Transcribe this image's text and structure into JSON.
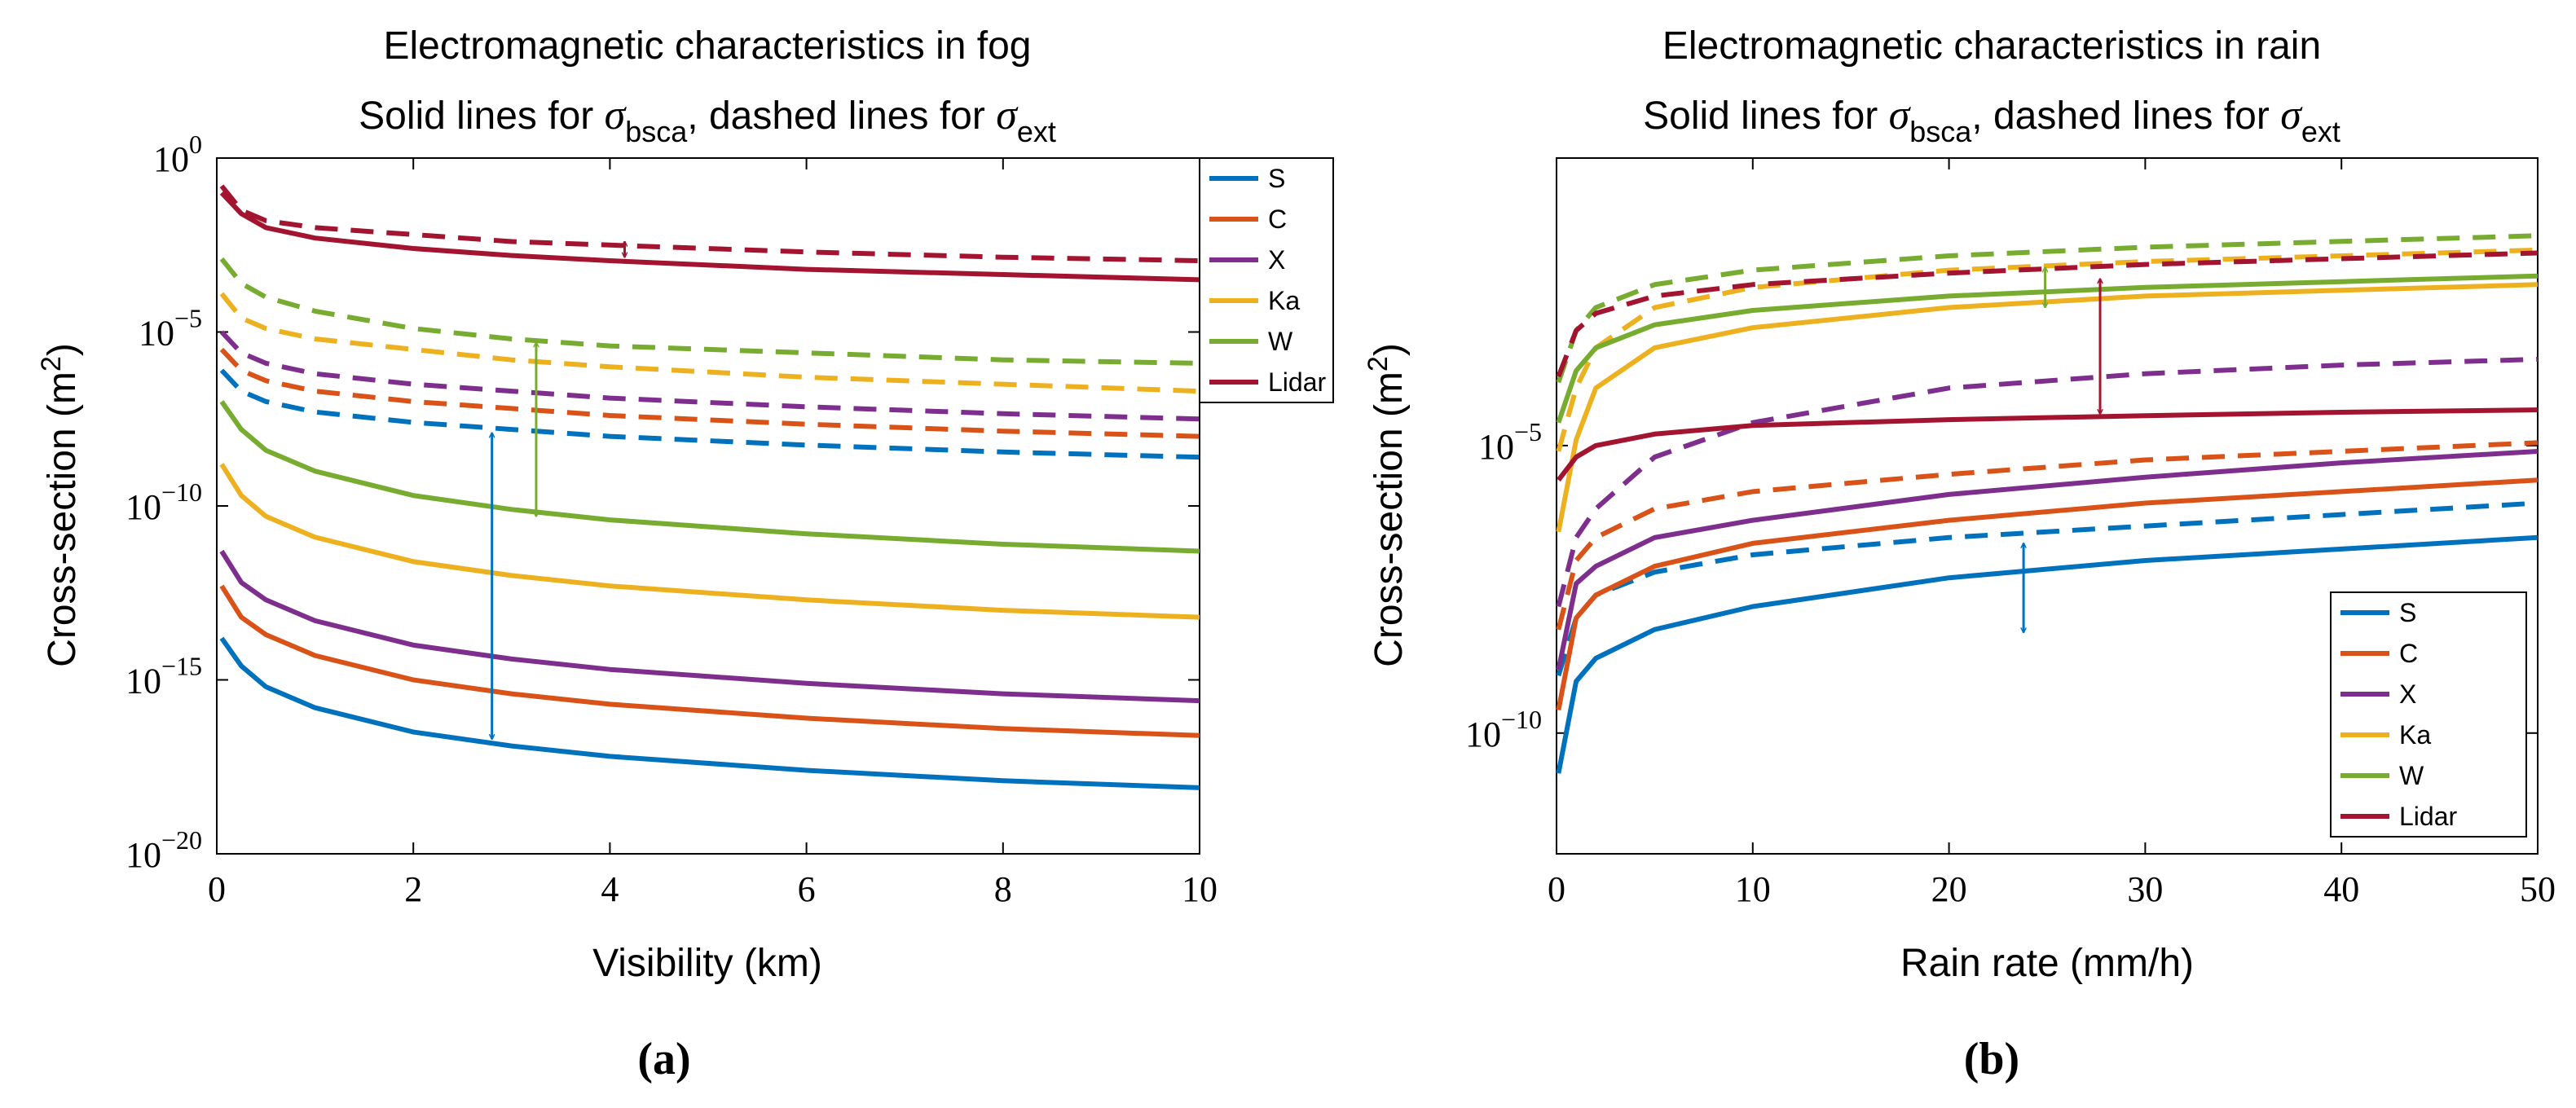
{
  "colors": {
    "S": "#0072BD",
    "C": "#D95319",
    "X": "#7E2F8E",
    "Ka": "#EDB120",
    "W": "#77AC30",
    "Lidar": "#A2142F"
  },
  "chart_data": [
    {
      "type": "line",
      "id": "fog",
      "title_line1": "Electromagnetic characteristics in fog",
      "title_line2": {
        "pre": "Solid lines for ",
        "sym1": "σ",
        "sub1": "bsca",
        "mid": ", dashed lines for ",
        "sym2": "σ",
        "sub2": "ext"
      },
      "xlabel": "Visibility (km)",
      "ylabel": "Cross-section (m",
      "ylabel_sup": "2",
      "ylabel_end": ")",
      "xlim": [
        0,
        10
      ],
      "ylim_log10": [
        -20,
        0
      ],
      "xticks": [
        0,
        2,
        4,
        6,
        8,
        10
      ],
      "yticks": [
        {
          "v": 0,
          "base": "10",
          "exp": "0"
        },
        {
          "v": -5,
          "base": "10",
          "exp": "−5"
        },
        {
          "v": -10,
          "base": "10",
          "exp": "−10"
        },
        {
          "v": -15,
          "base": "10",
          "exp": "−15"
        },
        {
          "v": -20,
          "base": "10",
          "exp": "−20"
        }
      ],
      "x": [
        0.05,
        0.25,
        0.5,
        1,
        2,
        3,
        4,
        6,
        8,
        10
      ],
      "legend": [
        "S",
        "C",
        "X",
        "Ka",
        "W",
        "Lidar"
      ],
      "legend_position": "outside-top-right",
      "series_solid_log10": [
        {
          "name": "S",
          "values": [
            -13.8,
            -14.6,
            -15.2,
            -15.8,
            -16.5,
            -16.9,
            -17.2,
            -17.6,
            -17.9,
            -18.1
          ]
        },
        {
          "name": "C",
          "values": [
            -12.3,
            -13.2,
            -13.7,
            -14.3,
            -15.0,
            -15.4,
            -15.7,
            -16.1,
            -16.4,
            -16.6
          ]
        },
        {
          "name": "X",
          "values": [
            -11.3,
            -12.2,
            -12.7,
            -13.3,
            -14.0,
            -14.4,
            -14.7,
            -15.1,
            -15.4,
            -15.6
          ]
        },
        {
          "name": "Ka",
          "values": [
            -8.8,
            -9.7,
            -10.3,
            -10.9,
            -11.6,
            -12.0,
            -12.3,
            -12.7,
            -13.0,
            -13.2
          ]
        },
        {
          "name": "W",
          "values": [
            -7.0,
            -7.8,
            -8.4,
            -9.0,
            -9.7,
            -10.1,
            -10.4,
            -10.8,
            -11.1,
            -11.3
          ]
        },
        {
          "name": "Lidar",
          "values": [
            -1.0,
            -1.6,
            -2.0,
            -2.3,
            -2.6,
            -2.8,
            -2.95,
            -3.2,
            -3.35,
            -3.5
          ]
        }
      ],
      "series_dashed_log10": [
        {
          "name": "S",
          "values": [
            -6.1,
            -6.7,
            -7.0,
            -7.3,
            -7.6,
            -7.8,
            -8.0,
            -8.25,
            -8.45,
            -8.6
          ]
        },
        {
          "name": "C",
          "values": [
            -5.5,
            -6.1,
            -6.4,
            -6.7,
            -7.0,
            -7.2,
            -7.4,
            -7.65,
            -7.85,
            -8.0
          ]
        },
        {
          "name": "X",
          "values": [
            -5.0,
            -5.6,
            -5.9,
            -6.2,
            -6.5,
            -6.7,
            -6.9,
            -7.15,
            -7.35,
            -7.5
          ]
        },
        {
          "name": "Ka",
          "values": [
            -3.9,
            -4.6,
            -4.9,
            -5.2,
            -5.5,
            -5.8,
            -6.0,
            -6.3,
            -6.5,
            -6.7
          ]
        },
        {
          "name": "W",
          "values": [
            -2.9,
            -3.6,
            -4.0,
            -4.4,
            -4.9,
            -5.2,
            -5.4,
            -5.6,
            -5.8,
            -5.9
          ]
        },
        {
          "name": "Lidar",
          "values": [
            -0.8,
            -1.5,
            -1.8,
            -2.0,
            -2.2,
            -2.4,
            -2.5,
            -2.7,
            -2.85,
            -2.95
          ]
        }
      ],
      "annotations": [
        {
          "color": "S",
          "x": 2.8,
          "y1": -7.9,
          "y2": -16.7
        },
        {
          "color": "W",
          "x": 3.25,
          "y1": -5.3,
          "y2": -10.3
        },
        {
          "color": "Lidar",
          "x": 4.15,
          "y1": -2.4,
          "y2": -2.85
        }
      ],
      "caption": "(a)"
    },
    {
      "type": "line",
      "id": "rain",
      "title_line1": "Electromagnetic characteristics in rain",
      "title_line2": {
        "pre": "Solid lines for ",
        "sym1": "σ",
        "sub1": "bsca",
        "mid": ", dashed lines for ",
        "sym2": "σ",
        "sub2": "ext"
      },
      "xlabel": "Rain rate (mm/h)",
      "ylabel": "Cross-section (m",
      "ylabel_sup": "2",
      "ylabel_end": ")",
      "xlim": [
        0,
        50
      ],
      "ylim_log10": [
        -12.1,
        0
      ],
      "xticks": [
        0,
        10,
        20,
        30,
        40,
        50
      ],
      "yticks": [
        {
          "v": -5,
          "base": "10",
          "exp": "−5"
        },
        {
          "v": -10,
          "base": "10",
          "exp": "−10"
        }
      ],
      "x": [
        0.1,
        1,
        2,
        5,
        10,
        20,
        30,
        40,
        50
      ],
      "legend": [
        "S",
        "C",
        "X",
        "Ka",
        "W",
        "Lidar"
      ],
      "legend_position": "bottom-right",
      "series_solid_log10": [
        {
          "name": "S",
          "values": [
            -10.7,
            -9.1,
            -8.7,
            -8.2,
            -7.8,
            -7.3,
            -7.0,
            -6.8,
            -6.6
          ]
        },
        {
          "name": "C",
          "values": [
            -9.6,
            -8.0,
            -7.6,
            -7.1,
            -6.7,
            -6.3,
            -6.0,
            -5.8,
            -5.6
          ]
        },
        {
          "name": "X",
          "values": [
            -8.9,
            -7.4,
            -7.1,
            -6.6,
            -6.3,
            -5.85,
            -5.55,
            -5.3,
            -5.1
          ]
        },
        {
          "name": "Ka",
          "values": [
            -6.5,
            -4.9,
            -4.0,
            -3.3,
            -2.95,
            -2.6,
            -2.4,
            -2.3,
            -2.2
          ]
        },
        {
          "name": "W",
          "values": [
            -4.6,
            -3.7,
            -3.3,
            -2.9,
            -2.65,
            -2.4,
            -2.25,
            -2.15,
            -2.05
          ]
        },
        {
          "name": "Lidar",
          "values": [
            -5.6,
            -5.2,
            -5.0,
            -4.8,
            -4.65,
            -4.55,
            -4.48,
            -4.42,
            -4.38
          ]
        }
      ],
      "series_dashed_log10": [
        {
          "name": "S",
          "values": [
            -9.0,
            -8.0,
            -7.6,
            -7.2,
            -6.9,
            -6.6,
            -6.4,
            -6.2,
            -6.0
          ]
        },
        {
          "name": "C",
          "values": [
            -8.2,
            -7.0,
            -6.6,
            -6.1,
            -5.8,
            -5.5,
            -5.25,
            -5.1,
            -4.95
          ]
        },
        {
          "name": "X",
          "values": [
            -7.8,
            -6.6,
            -6.1,
            -5.2,
            -4.6,
            -4.0,
            -3.75,
            -3.6,
            -3.5
          ]
        },
        {
          "name": "Ka",
          "values": [
            -5.1,
            -4.0,
            -3.3,
            -2.6,
            -2.25,
            -1.95,
            -1.8,
            -1.7,
            -1.6
          ]
        },
        {
          "name": "W",
          "values": [
            -3.9,
            -3.0,
            -2.6,
            -2.2,
            -1.95,
            -1.7,
            -1.55,
            -1.45,
            -1.35
          ]
        },
        {
          "name": "Lidar",
          "values": [
            -3.8,
            -3.0,
            -2.7,
            -2.4,
            -2.2,
            -2.0,
            -1.85,
            -1.75,
            -1.65
          ]
        }
      ],
      "annotations": [
        {
          "color": "S",
          "x": 23.8,
          "y1": -6.7,
          "y2": -8.25
        },
        {
          "color": "W",
          "x": 24.9,
          "y1": -1.9,
          "y2": -2.6
        },
        {
          "color": "Lidar",
          "x": 27.7,
          "y1": -2.1,
          "y2": -4.45
        }
      ],
      "caption": "(b)"
    }
  ]
}
